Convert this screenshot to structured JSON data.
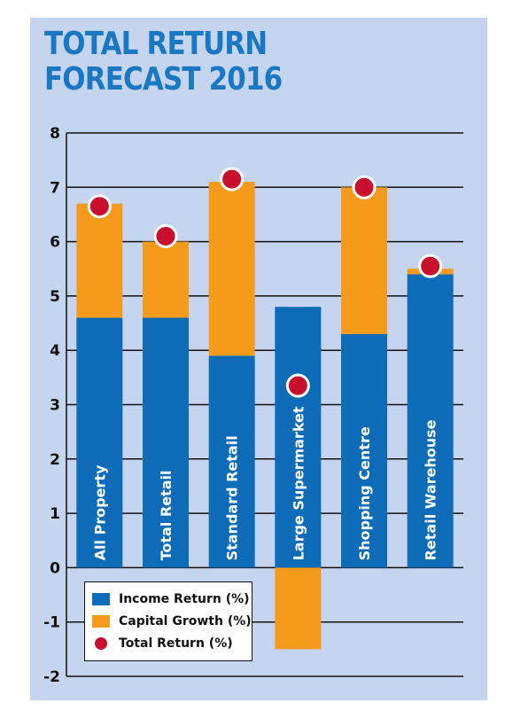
{
  "chart_data": {
    "type": "bar",
    "title": "TOTAL RETURN FORECAST 2016",
    "title_lines": [
      "TOTAL RETURN",
      "FORECAST 2016"
    ],
    "categories": [
      "All Property",
      "Total Retail",
      "Standard Retail",
      "Large Supermarket",
      "Shopping Centre",
      "Retail Warehouse"
    ],
    "series": [
      {
        "name": "Income Return (%)",
        "kind": "bar",
        "color": "#0d6bb7",
        "values": [
          4.6,
          4.6,
          3.9,
          4.8,
          4.3,
          5.4
        ]
      },
      {
        "name": "Capital Growth (%)",
        "kind": "bar",
        "color": "#f59a1b",
        "values": [
          2.1,
          1.4,
          3.2,
          -1.5,
          2.7,
          0.1
        ]
      },
      {
        "name": "Total Return (%)",
        "kind": "point",
        "color": "#c8102e",
        "values": [
          6.65,
          6.1,
          7.15,
          3.35,
          7.0,
          5.55
        ]
      }
    ],
    "ylim": [
      -2,
      8
    ],
    "yticks": [
      -2,
      -1,
      0,
      1,
      2,
      3,
      4,
      5,
      6,
      7,
      8
    ],
    "xlabel": "",
    "ylabel": "",
    "grid": true,
    "legend_position": "bottom-left",
    "colors": {
      "panel_bg": "#c5d4ef",
      "title": "#1a78c2",
      "grid": "#111111"
    }
  }
}
